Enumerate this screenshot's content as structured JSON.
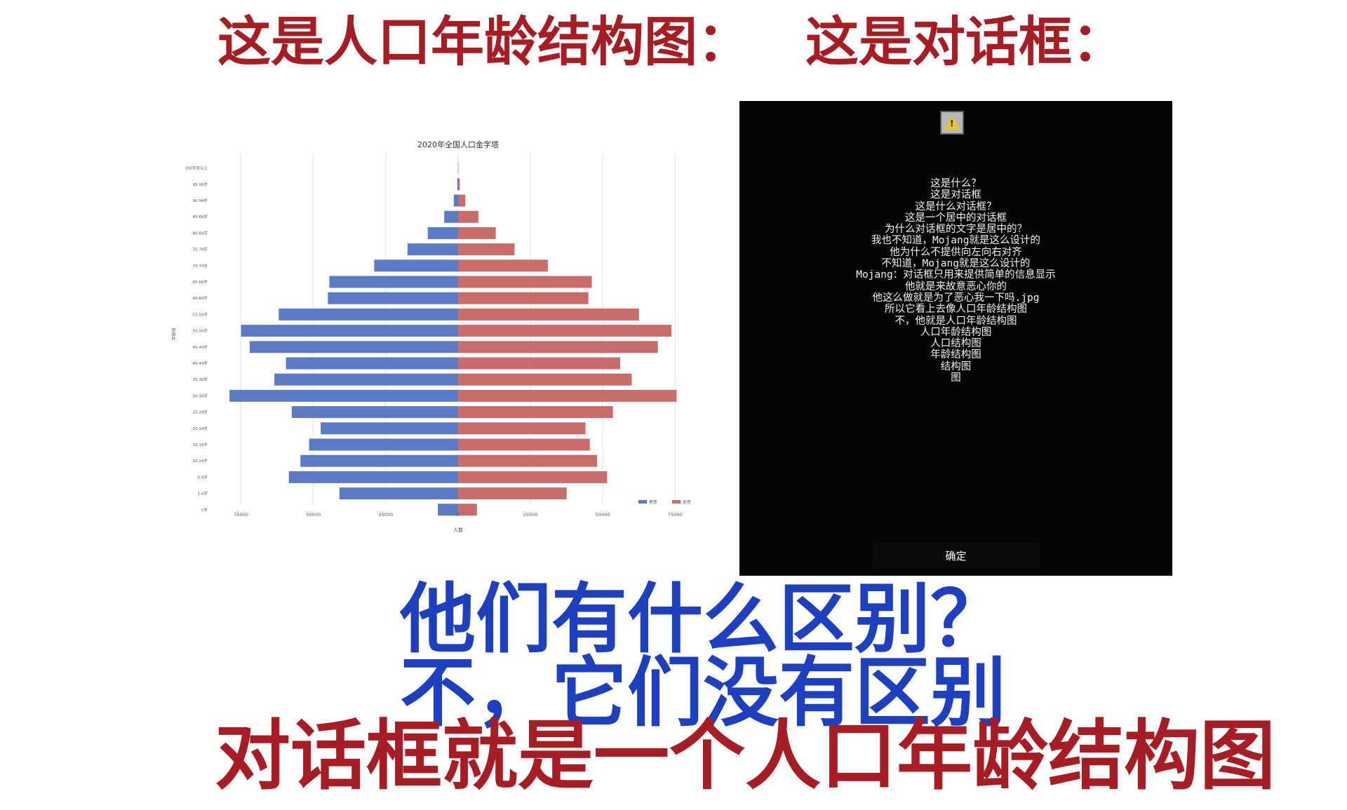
{
  "headings": {
    "left": "这是人口年龄结构图：",
    "right": "这是对话框："
  },
  "chart_data": {
    "type": "bar",
    "title": "2020年全国人口金字塔",
    "xlabel": "人数",
    "ylabel": "年龄段",
    "xlim": [
      -80000,
      80000
    ],
    "xticks": [
      "75000",
      "50000",
      "25000",
      "0",
      "25000",
      "50000",
      "75000"
    ],
    "categories": [
      "0岁",
      "1-4岁",
      "5-9岁",
      "10-14岁",
      "15-19岁",
      "20-24岁",
      "25-29岁",
      "30-34岁",
      "35-39岁",
      "40-44岁",
      "45-49岁",
      "50-54岁",
      "55-59岁",
      "60-64岁",
      "65-69岁",
      "70-74岁",
      "75-79岁",
      "80-84岁",
      "85-89岁",
      "90-94岁",
      "95-99岁",
      "100岁及以上"
    ],
    "series": [
      {
        "name": "男性",
        "color": "#5b7bc4",
        "values": [
          7000,
          41000,
          58500,
          54500,
          51500,
          47500,
          57500,
          79000,
          63500,
          59500,
          72000,
          75000,
          62000,
          45000,
          44500,
          29000,
          17500,
          10500,
          4800,
          1500,
          300,
          50
        ]
      },
      {
        "name": "女性",
        "color": "#c96d6b",
        "values": [
          6500,
          37500,
          51500,
          48000,
          45500,
          44000,
          53500,
          75500,
          60000,
          56000,
          69000,
          73700,
          62500,
          45000,
          46200,
          31000,
          19500,
          13000,
          7000,
          2500,
          600,
          100
        ]
      }
    ],
    "grid": true,
    "legend": "bottom-right"
  },
  "dialog": {
    "icon": "warning-icon",
    "lines": [
      "这是什么？",
      "这是对话框",
      "这是什么对话框？",
      "这是一个居中的对话框",
      "为什么对话框的文字是居中的？",
      "我也不知道，Mojang就是这么设计的",
      "他为什么不提供向左向右对齐",
      "不知道，Mojang就是这么设计的",
      "Mojang：对话框只用来提供简单的信息显示",
      "他就是来故意恶心你的",
      "他这么做就是为了恶心我一下吗.jpg",
      "所以它看上去像人口年龄结构图",
      "不，他就是人口年龄结构图",
      "人口年龄结构图",
      "人口结构图",
      "年龄结构图",
      "结构图",
      "图"
    ],
    "ok_label": "确定"
  },
  "bottom": {
    "question": "他们有什么区别？",
    "answer": "不，它们没有区别",
    "conclusion": "对话框就是一个人口年龄结构图"
  }
}
